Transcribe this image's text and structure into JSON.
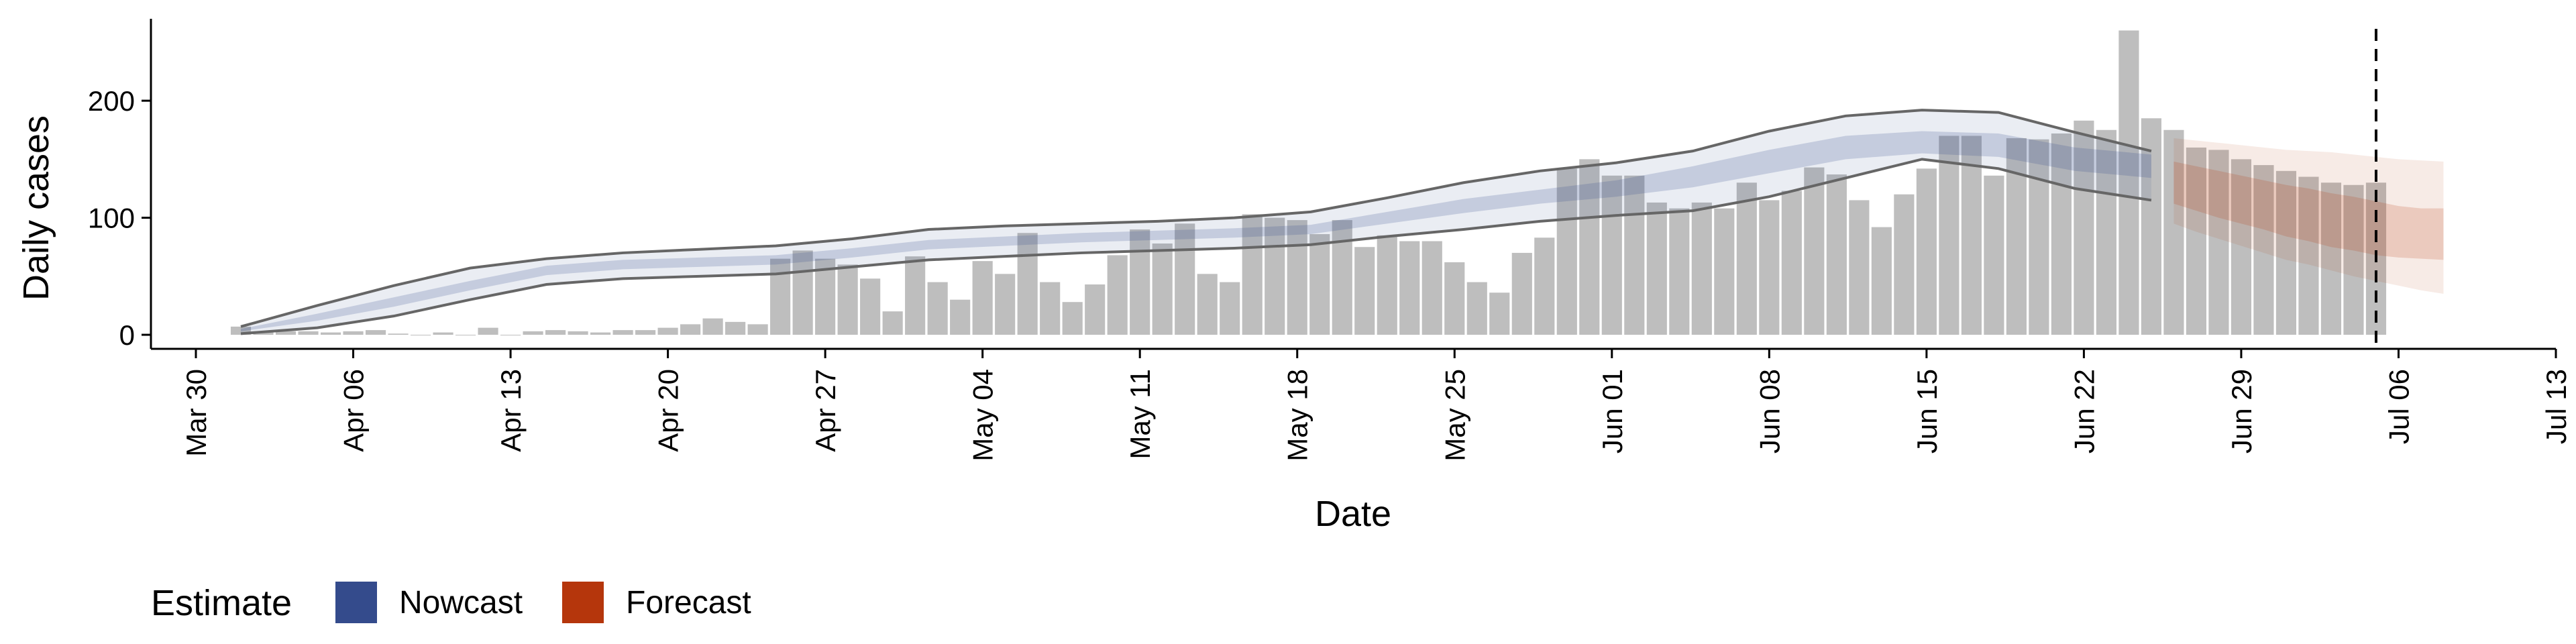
{
  "chart_data": {
    "type": "bar",
    "title": "",
    "xlabel": "Date",
    "ylabel": "Daily cases",
    "ylim": [
      -12,
      270
    ],
    "x_axis": {
      "type": "date",
      "range": [
        "2020-03-28",
        "2020-07-13"
      ],
      "ticks": [
        {
          "date": "2020-03-30",
          "label": "Mar 30"
        },
        {
          "date": "2020-04-06",
          "label": "Apr 06"
        },
        {
          "date": "2020-04-13",
          "label": "Apr 13"
        },
        {
          "date": "2020-04-20",
          "label": "Apr 20"
        },
        {
          "date": "2020-04-27",
          "label": "Apr 27"
        },
        {
          "date": "2020-05-04",
          "label": "May 04"
        },
        {
          "date": "2020-05-11",
          "label": "May 11"
        },
        {
          "date": "2020-05-18",
          "label": "May 18"
        },
        {
          "date": "2020-05-25",
          "label": "May 25"
        },
        {
          "date": "2020-06-01",
          "label": "Jun 01"
        },
        {
          "date": "2020-06-08",
          "label": "Jun 08"
        },
        {
          "date": "2020-06-15",
          "label": "Jun 15"
        },
        {
          "date": "2020-06-22",
          "label": "Jun 22"
        },
        {
          "date": "2020-06-29",
          "label": "Jun 29"
        },
        {
          "date": "2020-07-06",
          "label": "Jul 06"
        },
        {
          "date": "2020-07-13",
          "label": "Jul 13"
        }
      ]
    },
    "y_axis": {
      "ticks": [
        0,
        100,
        200
      ]
    },
    "grid": false,
    "bars": {
      "color": "#bebebe",
      "start_date": "2020-04-01",
      "values": [
        7,
        2,
        3,
        3,
        2,
        3,
        4,
        1,
        0,
        2,
        0,
        6,
        0,
        3,
        4,
        3,
        2,
        4,
        4,
        6,
        9,
        14,
        11,
        9,
        65,
        72,
        65,
        60,
        48,
        20,
        67,
        45,
        30,
        63,
        52,
        87,
        45,
        28,
        43,
        68,
        90,
        78,
        95,
        52,
        45,
        103,
        100,
        98,
        86,
        98,
        75,
        85,
        80,
        80,
        62,
        45,
        36,
        70,
        83,
        142,
        150,
        136,
        136,
        113,
        108,
        113,
        108,
        130,
        115,
        123,
        143,
        137,
        115,
        92,
        120,
        142,
        170,
        170,
        136,
        168,
        167,
        172,
        183,
        175,
        260,
        185,
        175,
        160,
        158,
        150,
        145,
        140,
        135,
        130,
        128,
        130
      ]
    },
    "reference_line": {
      "date": "2020-07-05",
      "style": "dashed"
    },
    "nowcast": {
      "start_date": "2020-04-01",
      "end_date": "2020-06-25",
      "median": [
        4,
        15,
        28,
        42,
        55,
        60,
        62,
        64,
        70,
        77,
        80,
        83,
        85,
        87,
        90,
        100,
        110,
        118,
        125,
        135,
        148,
        160,
        164,
        162,
        150,
        144
      ],
      "inner_lower": [
        3,
        12,
        24,
        38,
        51,
        56,
        58,
        60,
        66,
        73,
        76,
        79,
        81,
        83,
        86,
        95,
        104,
        112,
        118,
        126,
        138,
        150,
        155,
        152,
        140,
        134
      ],
      "inner_upper": [
        5,
        18,
        32,
        46,
        59,
        64,
        66,
        68,
        74,
        81,
        84,
        87,
        89,
        91,
        94,
        105,
        116,
        124,
        132,
        144,
        158,
        170,
        174,
        172,
        160,
        154
      ],
      "outer_lower": [
        1,
        6,
        16,
        30,
        43,
        48,
        50,
        52,
        58,
        64,
        67,
        70,
        72,
        74,
        77,
        84,
        90,
        97,
        102,
        106,
        118,
        134,
        150,
        142,
        125,
        115
      ],
      "outer_upper": [
        7,
        25,
        42,
        57,
        65,
        70,
        73,
        76,
        82,
        90,
        93,
        95,
        97,
        100,
        105,
        117,
        130,
        140,
        147,
        157,
        174,
        187,
        192,
        190,
        173,
        157
      ]
    },
    "forecast": {
      "start_date": "2020-06-26",
      "end_date": "2020-07-08",
      "median": [
        130,
        125,
        120,
        115,
        110,
        104,
        100,
        95,
        92,
        89,
        87,
        86,
        86
      ],
      "inner_lower": [
        112,
        106,
        100,
        95,
        90,
        84,
        80,
        75,
        72,
        68,
        66,
        65,
        64
      ],
      "inner_upper": [
        148,
        144,
        140,
        136,
        132,
        128,
        125,
        121,
        118,
        114,
        110,
        108,
        108
      ],
      "outer_lower": [
        95,
        88,
        82,
        76,
        70,
        64,
        60,
        55,
        50,
        46,
        42,
        38,
        35
      ],
      "outer_upper": [
        168,
        166,
        164,
        162,
        160,
        158,
        157,
        156,
        154,
        152,
        150,
        149,
        148
      ]
    },
    "legend": {
      "position": "bottom-left",
      "title": "Estimate",
      "entries": [
        {
          "label": "Nowcast",
          "color": "#344b8c"
        },
        {
          "label": "Forecast",
          "color": "#b5360c"
        }
      ]
    },
    "colors": {
      "axis": "#000000",
      "bar": "#bebebe",
      "nowcast_fill": "#344b8c",
      "forecast_fill": "#b5360c",
      "outer_line": "#666666"
    }
  }
}
